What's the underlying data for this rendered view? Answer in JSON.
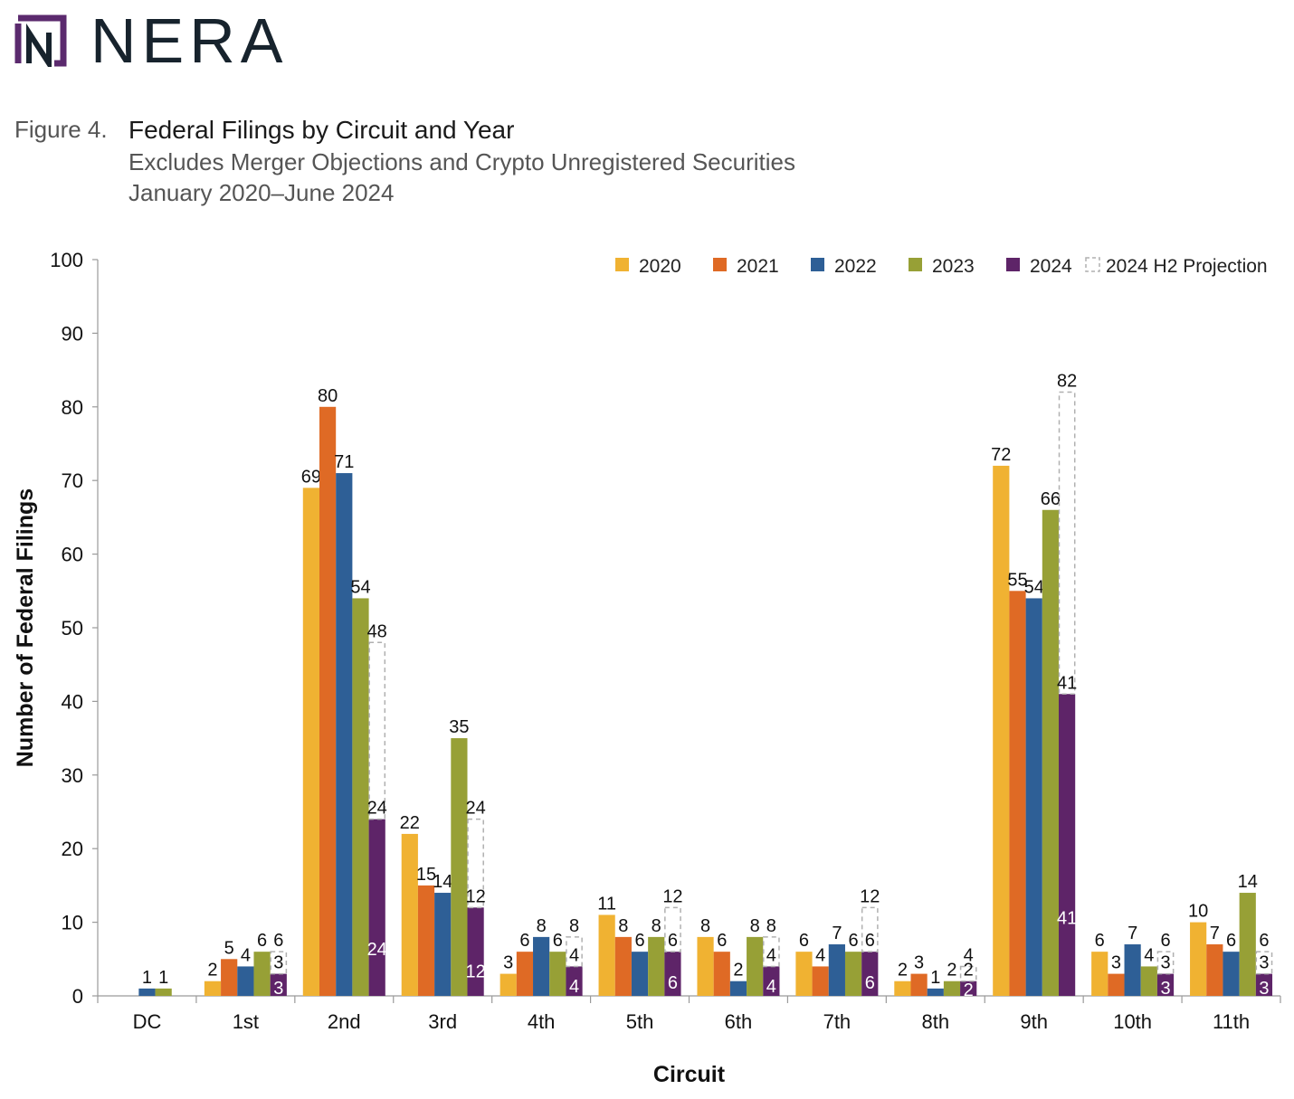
{
  "logo": {
    "text": "NERA",
    "accent_color": "#5b2a6e",
    "text_color": "#17232d"
  },
  "figure": {
    "label": "Figure 4.",
    "title": "Federal Filings by Circuit and Year",
    "subtitle1": "Excludes Merger Objections and Crypto Unregistered Securities",
    "subtitle2": "January 2020–June 2024"
  },
  "chart_data": {
    "type": "bar",
    "xlabel": "Circuit",
    "ylabel": "Number of Federal Filings",
    "ylim": [
      0,
      100
    ],
    "yticks": [
      0,
      10,
      20,
      30,
      40,
      50,
      60,
      70,
      80,
      90,
      100
    ],
    "legend_position": "top-right",
    "categories": [
      "DC",
      "1st",
      "2nd",
      "3rd",
      "4th",
      "5th",
      "6th",
      "7th",
      "8th",
      "9th",
      "10th",
      "11th"
    ],
    "series": [
      {
        "name": "2020",
        "color": "#f0b232",
        "values": [
          0,
          2,
          69,
          22,
          3,
          11,
          8,
          6,
          2,
          72,
          6,
          10
        ]
      },
      {
        "name": "2021",
        "color": "#df6a25",
        "values": [
          0,
          5,
          80,
          15,
          6,
          8,
          6,
          4,
          3,
          55,
          3,
          7
        ]
      },
      {
        "name": "2022",
        "color": "#2e5f96",
        "values": [
          1,
          4,
          71,
          14,
          8,
          6,
          2,
          7,
          1,
          54,
          7,
          6
        ]
      },
      {
        "name": "2023",
        "color": "#97a036",
        "values": [
          1,
          6,
          54,
          35,
          6,
          8,
          8,
          6,
          2,
          66,
          4,
          14
        ]
      },
      {
        "name": "2024",
        "color": "#5e2468",
        "values": [
          0,
          3,
          24,
          12,
          4,
          6,
          4,
          6,
          2,
          41,
          3,
          3
        ]
      }
    ],
    "projection": {
      "name": "2024 H2 Projection",
      "values": [
        null,
        6,
        48,
        24,
        8,
        12,
        8,
        12,
        4,
        82,
        6,
        6
      ]
    }
  }
}
